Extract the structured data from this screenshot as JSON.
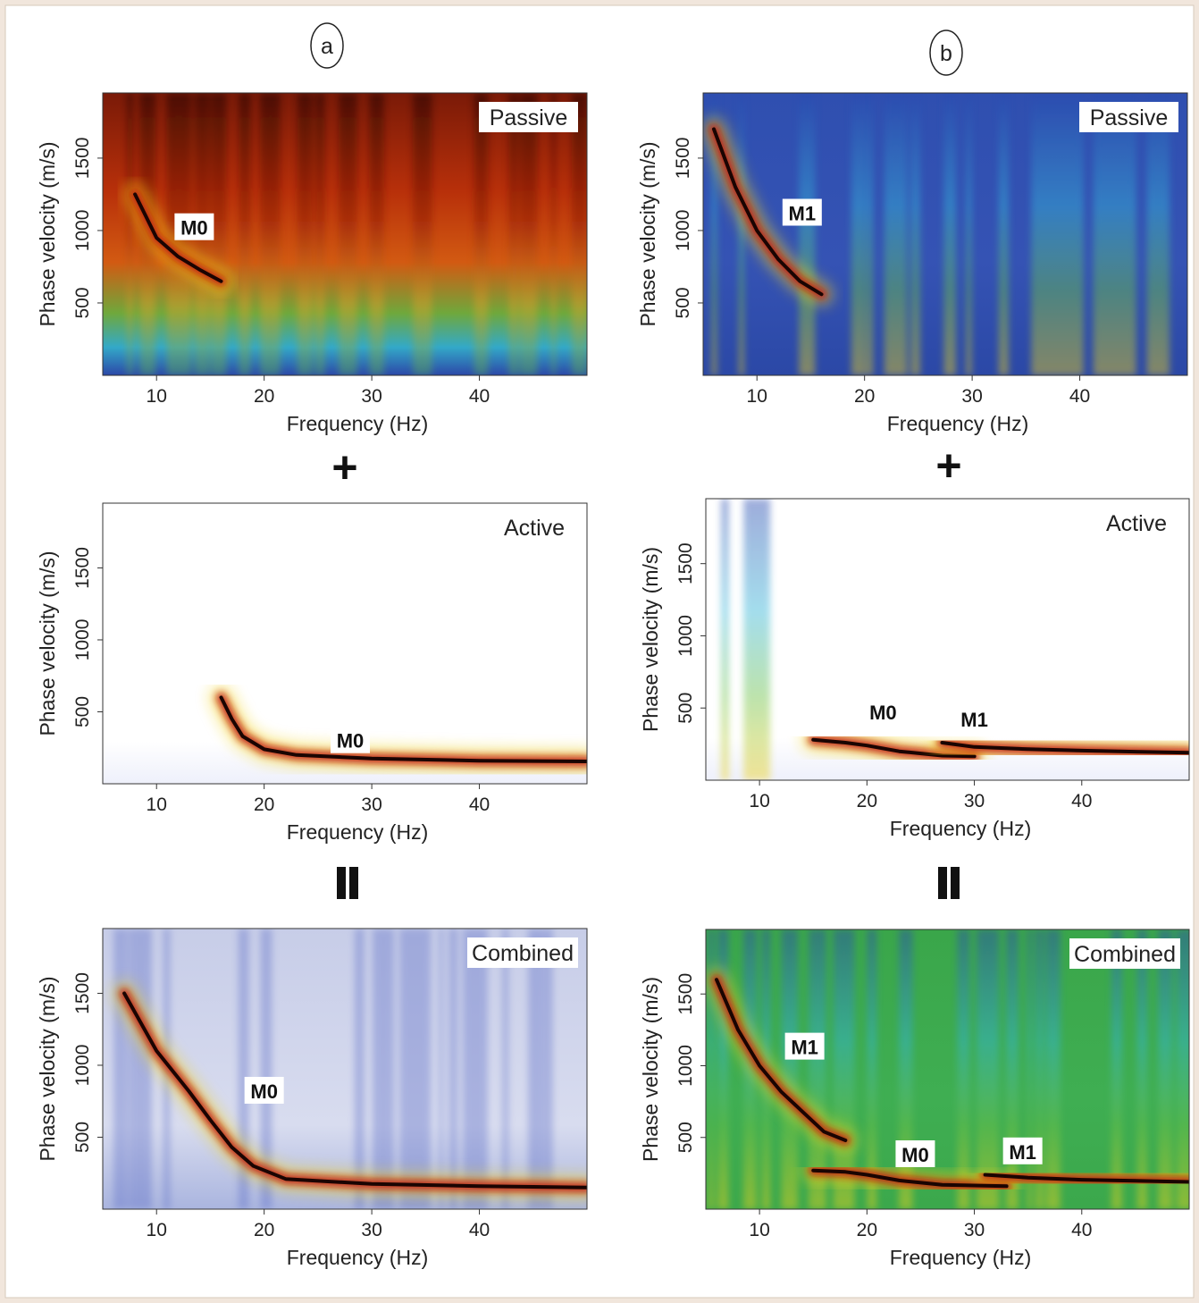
{
  "figure": {
    "column_labels": [
      "a",
      "b"
    ],
    "operators": {
      "plus": "+",
      "equals": "="
    }
  },
  "chart_data": [
    {
      "type": "heatmap",
      "column": "a",
      "row": 0,
      "title": "Passive",
      "xlabel": "Frequency (Hz)",
      "ylabel": "Phase velocity (m/s)",
      "xlim": [
        5,
        50
      ],
      "ylim": [
        0,
        1950
      ],
      "xticks": [
        10,
        20,
        30,
        40
      ],
      "yticks": [
        500,
        1000,
        1500
      ],
      "colormap": "hot",
      "modes": [
        {
          "name": "M0",
          "points": [
            [
              8,
              1250
            ],
            [
              10,
              950
            ],
            [
              12,
              820
            ],
            [
              14,
              730
            ],
            [
              16,
              650
            ]
          ]
        }
      ],
      "annotations": [
        {
          "text": "M0",
          "x": 13.5,
          "y": 1020
        }
      ]
    },
    {
      "type": "heatmap",
      "column": "a",
      "row": 1,
      "title": "Active",
      "xlabel": "Frequency (Hz)",
      "ylabel": "Phase velocity (m/s)",
      "xlim": [
        5,
        50
      ],
      "ylim": [
        0,
        1950
      ],
      "xticks": [
        10,
        20,
        30,
        40
      ],
      "yticks": [
        500,
        1000,
        1500
      ],
      "colormap": "white-blue-red",
      "modes": [
        {
          "name": "M0",
          "points": [
            [
              16,
              600
            ],
            [
              17,
              450
            ],
            [
              18,
              330
            ],
            [
              20,
              240
            ],
            [
              23,
              200
            ],
            [
              30,
              175
            ],
            [
              40,
              160
            ],
            [
              50,
              155
            ]
          ]
        }
      ],
      "annotations": [
        {
          "text": "M0",
          "x": 28,
          "y": 300
        }
      ]
    },
    {
      "type": "heatmap",
      "column": "a",
      "row": 2,
      "title": "Combined",
      "xlabel": "Frequency (Hz)",
      "ylabel": "Phase velocity (m/s)",
      "xlim": [
        5,
        50
      ],
      "ylim": [
        0,
        1950
      ],
      "xticks": [
        10,
        20,
        30,
        40
      ],
      "yticks": [
        500,
        1000,
        1500
      ],
      "colormap": "white-blue-hot",
      "modes": [
        {
          "name": "M0",
          "points": [
            [
              7,
              1500
            ],
            [
              10,
              1100
            ],
            [
              13,
              820
            ],
            [
              15,
              620
            ],
            [
              17,
              430
            ],
            [
              19,
              300
            ],
            [
              22,
              210
            ],
            [
              30,
              175
            ],
            [
              40,
              160
            ],
            [
              50,
              150
            ]
          ]
        }
      ],
      "annotations": [
        {
          "text": "M0",
          "x": 20,
          "y": 820
        }
      ]
    },
    {
      "type": "heatmap",
      "column": "b",
      "row": 0,
      "title": "Passive",
      "xlabel": "Frequency (Hz)",
      "ylabel": "Phase velocity (m/s)",
      "xlim": [
        5,
        50
      ],
      "ylim": [
        0,
        1950
      ],
      "xticks": [
        10,
        20,
        30,
        40
      ],
      "yticks": [
        500,
        1000,
        1500
      ],
      "colormap": "blue-jet",
      "modes": [
        {
          "name": "M1",
          "points": [
            [
              6,
              1700
            ],
            [
              8,
              1300
            ],
            [
              10,
              1000
            ],
            [
              12,
              800
            ],
            [
              14,
              650
            ],
            [
              16,
              560
            ]
          ]
        }
      ],
      "annotations": [
        {
          "text": "M1",
          "x": 14.2,
          "y": 1120
        }
      ]
    },
    {
      "type": "heatmap",
      "column": "b",
      "row": 1,
      "title": "Active",
      "xlabel": "Frequency (Hz)",
      "ylabel": "Phase velocity (m/s)",
      "xlim": [
        5,
        50
      ],
      "ylim": [
        0,
        1950
      ],
      "xticks": [
        10,
        20,
        30,
        40
      ],
      "yticks": [
        500,
        1000,
        1500
      ],
      "colormap": "white-blue-jet",
      "modes": [
        {
          "name": "M0",
          "points": [
            [
              15,
              280
            ],
            [
              18,
              260
            ],
            [
              20,
              240
            ],
            [
              23,
              200
            ],
            [
              27,
              170
            ],
            [
              30,
              165
            ]
          ]
        },
        {
          "name": "M1",
          "points": [
            [
              27,
              260
            ],
            [
              30,
              230
            ],
            [
              35,
              215
            ],
            [
              40,
              205
            ],
            [
              50,
              190
            ]
          ]
        }
      ],
      "annotations": [
        {
          "text": "M0",
          "x": 21.5,
          "y": 470
        },
        {
          "text": "M1",
          "x": 30,
          "y": 420
        }
      ]
    },
    {
      "type": "heatmap",
      "column": "b",
      "row": 2,
      "title": "Combined",
      "xlabel": "Frequency (Hz)",
      "ylabel": "Phase velocity (m/s)",
      "xlim": [
        5,
        50
      ],
      "ylim": [
        0,
        1950
      ],
      "xticks": [
        10,
        20,
        30,
        40
      ],
      "yticks": [
        500,
        1000,
        1500
      ],
      "colormap": "green-jet",
      "modes": [
        {
          "name": "M1",
          "points": [
            [
              6,
              1600
            ],
            [
              8,
              1250
            ],
            [
              10,
              1000
            ],
            [
              12,
              820
            ],
            [
              14,
              680
            ],
            [
              16,
              540
            ],
            [
              18,
              480
            ]
          ]
        },
        {
          "name": "M0",
          "points": [
            [
              15,
              270
            ],
            [
              18,
              260
            ],
            [
              20,
              240
            ],
            [
              23,
              200
            ],
            [
              27,
              170
            ],
            [
              30,
              165
            ],
            [
              33,
              160
            ]
          ]
        },
        {
          "name": "M1",
          "points": [
            [
              31,
              240
            ],
            [
              35,
              220
            ],
            [
              40,
              205
            ],
            [
              50,
              190
            ]
          ]
        }
      ],
      "annotations": [
        {
          "text": "M1",
          "x": 14.2,
          "y": 1130
        },
        {
          "text": "M0",
          "x": 24.5,
          "y": 380
        },
        {
          "text": "M1",
          "x": 34.5,
          "y": 400
        }
      ]
    }
  ]
}
